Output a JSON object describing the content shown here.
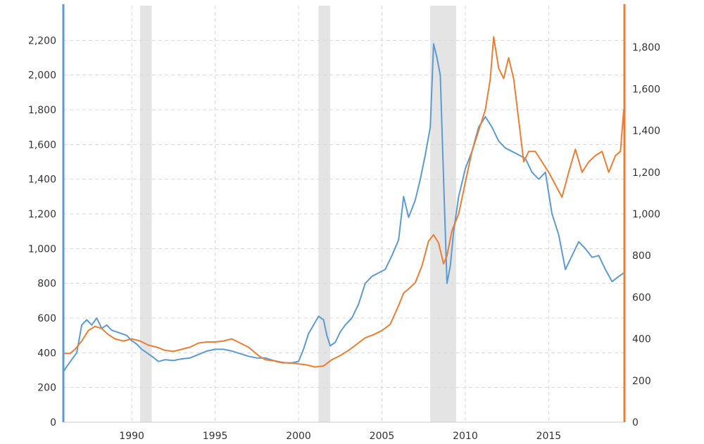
{
  "chart_data": {
    "type": "line",
    "title": "",
    "xlabel": "",
    "x_range": [
      1985.9,
      2019.5
    ],
    "x_ticks": [
      "1990",
      "1995",
      "2000",
      "2005",
      "2010",
      "2015"
    ],
    "x_tick_values": [
      1990,
      1995,
      2000,
      2005,
      2010,
      2015
    ],
    "recessions": [
      [
        1990.5,
        1991.2
      ],
      [
        2001.2,
        2001.9
      ],
      [
        2007.9,
        2009.45
      ]
    ],
    "left_axis": {
      "color": "#5b9bd5",
      "ylim": [
        0,
        2400
      ],
      "tick_values": [
        0,
        200,
        400,
        600,
        800,
        1000,
        1200,
        1400,
        1600,
        1800,
        2000,
        2200
      ],
      "tick_labels": [
        "0",
        "200",
        "400",
        "600",
        "800",
        "1,000",
        "1,200",
        "1,400",
        "1,600",
        "1,800",
        "2,000",
        "2,200"
      ]
    },
    "right_axis": {
      "color": "#ed7d31",
      "ylim": [
        0,
        2000
      ],
      "tick_values": [
        0,
        200,
        400,
        600,
        800,
        1000,
        1200,
        1400,
        1600,
        1800
      ],
      "tick_labels": [
        "0",
        "200",
        "400",
        "600",
        "800",
        "1,000",
        "1,200",
        "1,400",
        "1,600",
        "1,800"
      ]
    },
    "series": [
      {
        "name": "blue series (left axis)",
        "axis": "left",
        "color": "#5b9bd5",
        "x": [
          1985.9,
          1986.1,
          1986.4,
          1986.7,
          1987.0,
          1987.3,
          1987.6,
          1987.9,
          1988.2,
          1988.5,
          1988.8,
          1989.1,
          1989.4,
          1989.7,
          1990.0,
          1990.3,
          1990.6,
          1990.9,
          1991.2,
          1991.6,
          1992.0,
          1992.5,
          1993.0,
          1993.5,
          1994.0,
          1994.5,
          1995.0,
          1995.5,
          1996.0,
          1996.5,
          1997.0,
          1997.5,
          1998.0,
          1998.5,
          1999.0,
          1999.5,
          2000.0,
          2000.3,
          2000.6,
          2000.9,
          2001.2,
          2001.5,
          2001.7,
          2001.9,
          2002.2,
          2002.5,
          2002.8,
          2003.2,
          2003.6,
          2004.0,
          2004.4,
          2004.8,
          2005.2,
          2005.6,
          2006.0,
          2006.3,
          2006.6,
          2007.0,
          2007.3,
          2007.6,
          2007.9,
          2008.1,
          2008.3,
          2008.5,
          2008.7,
          2008.9,
          2009.1,
          2009.3,
          2009.6,
          2010.0,
          2010.4,
          2010.8,
          2011.2,
          2011.6,
          2012.0,
          2012.4,
          2012.8,
          2013.2,
          2013.6,
          2014.0,
          2014.4,
          2014.8,
          2015.2,
          2015.6,
          2016.0,
          2016.4,
          2016.8,
          2017.2,
          2017.6,
          2018.0,
          2018.4,
          2018.8,
          2019.2,
          2019.5
        ],
        "values": [
          290,
          320,
          360,
          400,
          560,
          590,
          560,
          600,
          540,
          560,
          530,
          520,
          510,
          500,
          470,
          450,
          420,
          400,
          380,
          350,
          360,
          355,
          365,
          370,
          390,
          410,
          420,
          420,
          410,
          395,
          380,
          370,
          370,
          355,
          345,
          340,
          350,
          420,
          510,
          560,
          610,
          590,
          500,
          440,
          460,
          520,
          560,
          600,
          680,
          800,
          840,
          860,
          880,
          960,
          1050,
          1300,
          1180,
          1280,
          1400,
          1540,
          1700,
          2180,
          2100,
          2000,
          1400,
          800,
          900,
          1100,
          1300,
          1460,
          1560,
          1700,
          1760,
          1700,
          1620,
          1580,
          1560,
          1540,
          1520,
          1440,
          1400,
          1440,
          1200,
          1080,
          880,
          960,
          1040,
          1000,
          950,
          960,
          880,
          810,
          840,
          860
        ]
      },
      {
        "name": "orange series (right axis)",
        "axis": "right",
        "color": "#ed7d31",
        "x": [
          1985.9,
          1986.3,
          1986.6,
          1987.0,
          1987.4,
          1987.8,
          1988.2,
          1988.6,
          1989.0,
          1989.5,
          1990.0,
          1990.5,
          1991.0,
          1991.5,
          1992.0,
          1992.5,
          1993.0,
          1993.5,
          1994.0,
          1994.5,
          1995.0,
          1995.5,
          1996.0,
          1996.5,
          1997.0,
          1997.3,
          1997.6,
          1998.0,
          1998.5,
          1999.0,
          1999.5,
          2000.0,
          2000.5,
          2001.0,
          2001.5,
          2002.0,
          2002.5,
          2003.0,
          2003.5,
          2004.0,
          2004.5,
          2005.0,
          2005.5,
          2006.0,
          2006.3,
          2006.6,
          2007.0,
          2007.4,
          2007.8,
          2008.1,
          2008.4,
          2008.7,
          2008.9,
          2009.2,
          2009.6,
          2010.0,
          2010.4,
          2010.8,
          2011.2,
          2011.5,
          2011.7,
          2012.0,
          2012.3,
          2012.6,
          2012.9,
          2013.2,
          2013.5,
          2013.8,
          2014.2,
          2014.6,
          2015.0,
          2015.4,
          2015.8,
          2016.2,
          2016.6,
          2017.0,
          2017.4,
          2017.8,
          2018.2,
          2018.6,
          2019.0,
          2019.3,
          2019.5
        ],
        "values": [
          330,
          330,
          350,
          390,
          440,
          460,
          450,
          420,
          400,
          390,
          400,
          390,
          370,
          360,
          345,
          340,
          350,
          360,
          380,
          385,
          385,
          390,
          400,
          380,
          360,
          340,
          320,
          300,
          295,
          285,
          285,
          280,
          275,
          265,
          270,
          300,
          320,
          345,
          375,
          405,
          420,
          440,
          470,
          560,
          620,
          640,
          670,
          750,
          870,
          900,
          860,
          760,
          800,
          920,
          1000,
          1150,
          1300,
          1400,
          1500,
          1650,
          1850,
          1700,
          1650,
          1750,
          1650,
          1450,
          1250,
          1300,
          1300,
          1250,
          1200,
          1140,
          1080,
          1200,
          1310,
          1200,
          1250,
          1280,
          1300,
          1200,
          1280,
          1300,
          1500
        ]
      }
    ]
  }
}
